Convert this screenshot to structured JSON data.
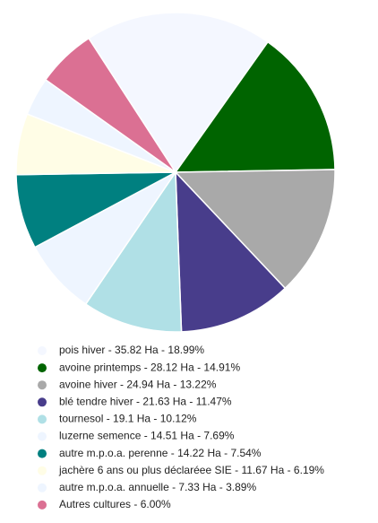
{
  "chart_data": {
    "type": "pie",
    "categories": [
      "pois hiver - 35.82 Ha - 18.99%",
      "avoine printemps - 28.12 Ha - 14.91%",
      "avoine hiver - 24.94 Ha - 13.22%",
      "blé tendre hiver - 21.63 Ha - 11.47%",
      "tournesol - 19.1 Ha - 10.12%",
      "luzerne semence - 14.51 Ha - 7.69%",
      "autre m.p.o.a. perenne - 14.22 Ha - 7.54%",
      "jachère 6 ans ou plus déclaréee SIE - 11.67 Ha - 6.19%",
      "autre m.p.o.a. annuelle - 7.33 Ha - 3.89%",
      "Autres cultures - 6.00%"
    ],
    "values": [
      18.99,
      14.91,
      13.22,
      11.47,
      10.12,
      7.69,
      7.54,
      6.19,
      3.89,
      6
    ],
    "colors": [
      "#f4f7ff",
      "#006400",
      "#a9a9a9",
      "#483d8b",
      "#b0e0e6",
      "#eef5ff",
      "#008080",
      "#fffde6",
      "#eef5ff",
      "#db7093"
    ],
    "legend": "bottom"
  }
}
